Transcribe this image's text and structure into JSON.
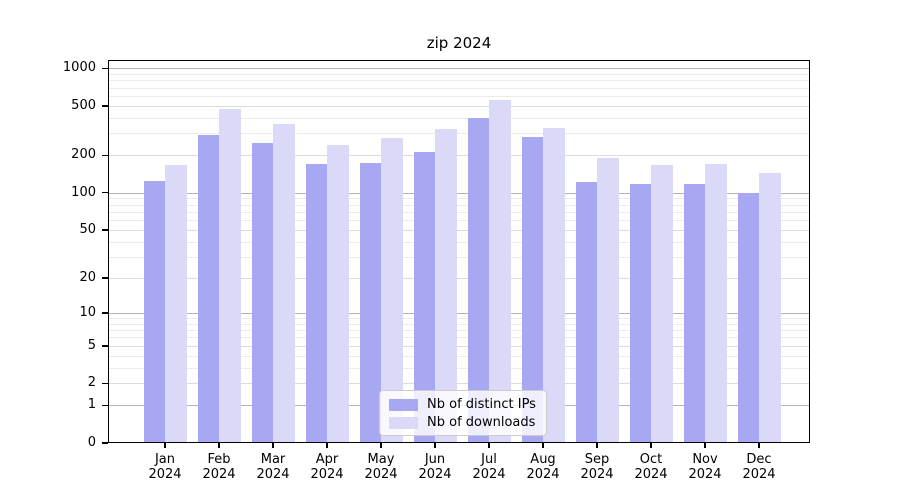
{
  "title": "zip 2024",
  "chart_data": {
    "type": "bar",
    "title": "zip 2024",
    "categories": [
      "Jan",
      "Feb",
      "Mar",
      "Apr",
      "May",
      "Jun",
      "Jul",
      "Aug",
      "Sep",
      "Oct",
      "Nov",
      "Dec"
    ],
    "x_tick_second_line": "2024",
    "series": [
      {
        "name": "Nb of distinct IPs",
        "color": "#a8a8f2",
        "values": [
          124,
          290,
          250,
          170,
          175,
          212,
          400,
          283,
          121,
          118,
          118,
          100
        ]
      },
      {
        "name": "Nb of downloads",
        "color": "#dadaf8",
        "values": [
          168,
          475,
          360,
          241,
          277,
          324,
          553,
          332,
          190,
          167,
          172,
          143
        ]
      }
    ],
    "y_ticks": [
      0,
      1,
      2,
      5,
      10,
      20,
      50,
      100,
      200,
      500,
      1000
    ],
    "y_major_gridlines": [
      1,
      10,
      100,
      1000
    ],
    "y_minor_gridlines": [
      2,
      3,
      4,
      5,
      6,
      7,
      8,
      9,
      20,
      30,
      40,
      50,
      60,
      70,
      80,
      90,
      200,
      300,
      400,
      500,
      600,
      700,
      800,
      900
    ],
    "y_scale": "symlog ln(1+v)",
    "ylim": [
      0,
      1160
    ],
    "grid": "horizontal",
    "legend_position": "inside-bottom-center",
    "colors": {
      "background": "#ffffff",
      "axis": "#000000",
      "major_grid": "#b3b3b3",
      "labeled_minor_grid": "#dcdcdc",
      "minor_grid": "#ececec"
    }
  }
}
